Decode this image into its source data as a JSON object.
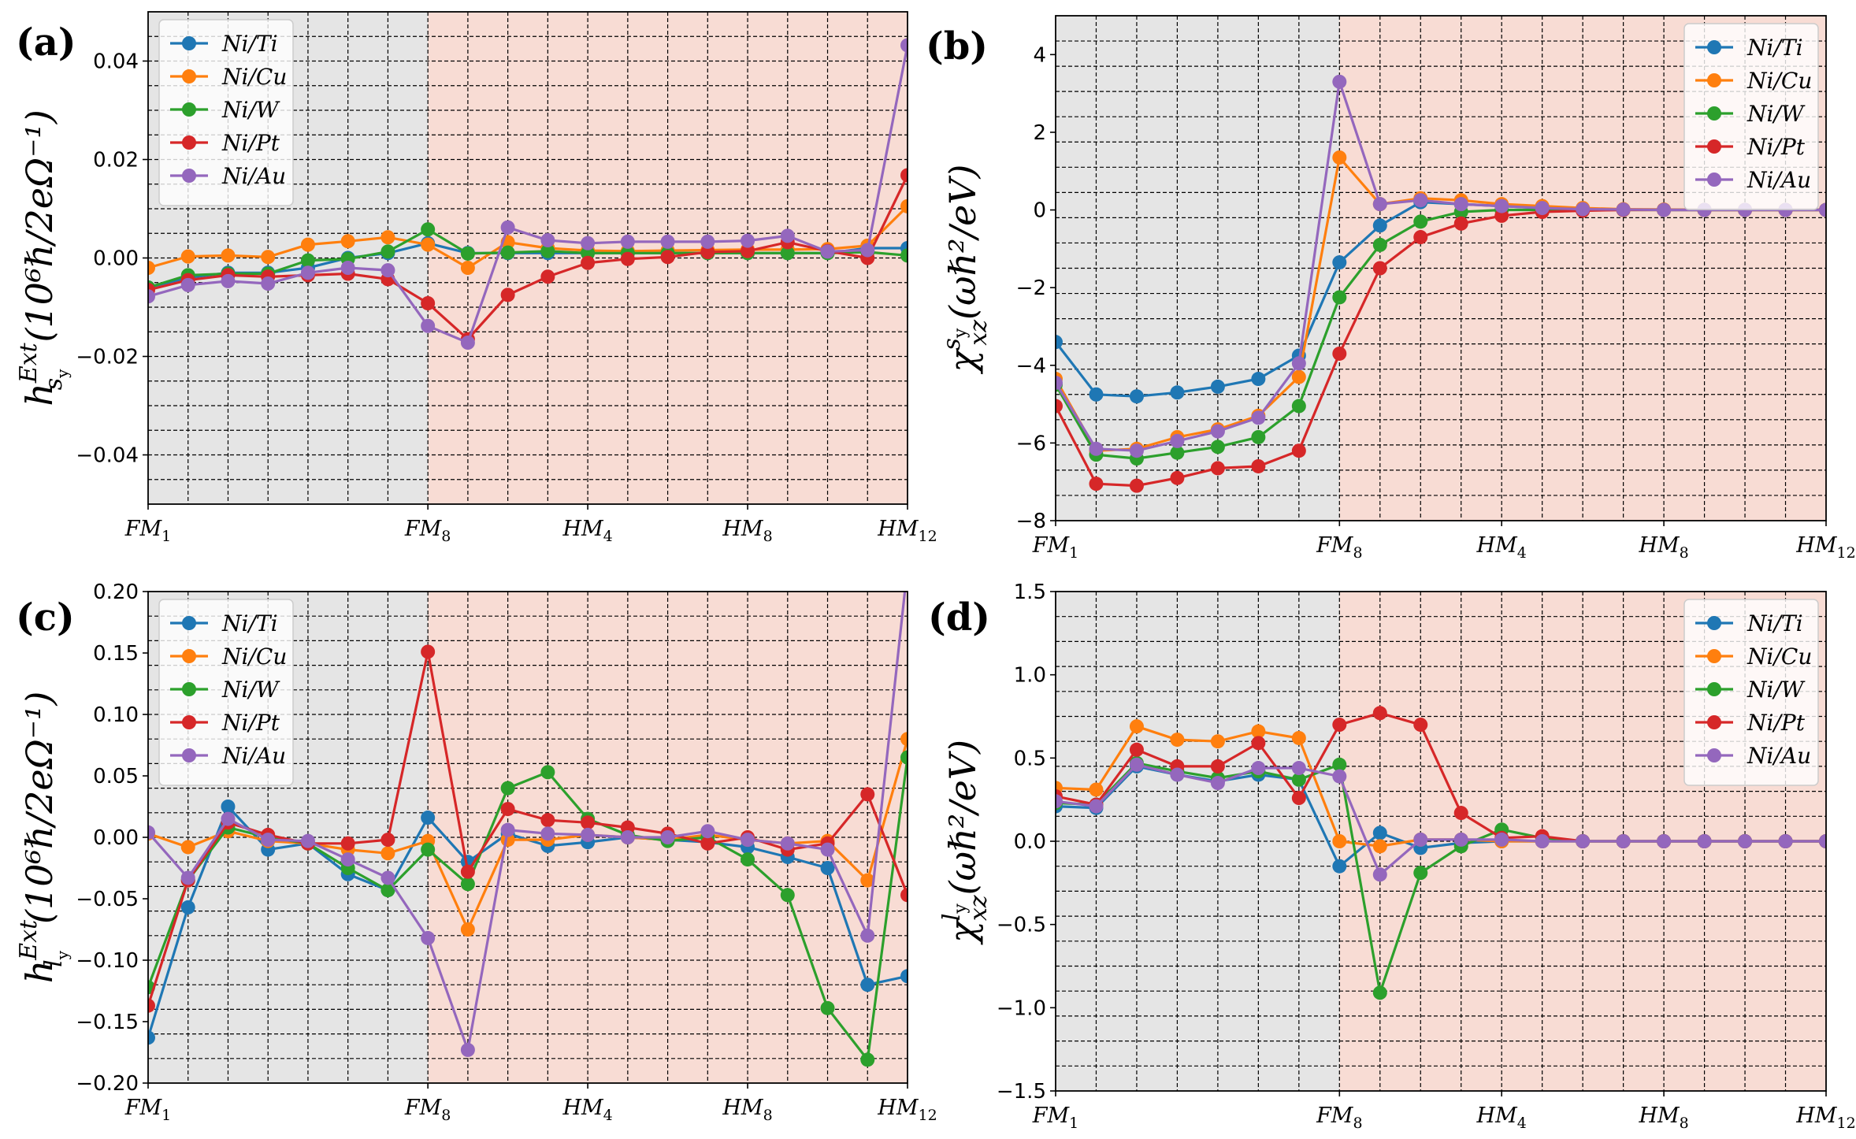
{
  "chart_data": [
    {
      "panel": "(a)",
      "type": "line",
      "ylabel_base": "h",
      "ylabel_sup": "Ext",
      "ylabel_sub": "s",
      "ylabel_subsub": "y",
      "ylabel_units": "(10⁶ℏ/2eΩ⁻¹)",
      "ylim": [
        -0.05,
        0.05
      ],
      "yticks": [
        -0.04,
        -0.02,
        0.0,
        0.02,
        0.04
      ],
      "ytick_labels": [
        "−0.04",
        "−0.02",
        "0.00",
        "0.02",
        "0.04"
      ],
      "x_count": 20,
      "xticks": [
        0,
        7,
        11,
        15,
        19
      ],
      "xtick_labels": [
        [
          "FM",
          "1"
        ],
        [
          "FM",
          "8"
        ],
        [
          "HM",
          "4"
        ],
        [
          "HM",
          "8"
        ],
        [
          "HM",
          "12"
        ]
      ],
      "shade_split": 7,
      "legend_loc": "upper-left",
      "series": [
        {
          "name": "Ni/Ti",
          "values": [
            -0.006,
            -0.004,
            -0.003,
            -0.003,
            -0.002,
            0.0,
            0.001,
            0.003,
            0.001,
            0.001,
            0.001,
            0.001,
            0.001,
            0.001,
            0.001,
            0.001,
            0.001,
            0.001,
            0.002,
            0.002
          ]
        },
        {
          "name": "Ni/Cu",
          "values": [
            -0.002,
            0.0003,
            0.0005,
            0.0002,
            0.0027,
            0.0034,
            0.0042,
            0.0027,
            -0.002,
            0.0032,
            0.002,
            0.0015,
            0.0014,
            0.0015,
            0.0016,
            0.0017,
            0.0017,
            0.0018,
            0.0025,
            0.0105
          ]
        },
        {
          "name": "Ni/W",
          "values": [
            -0.006,
            -0.0035,
            -0.0032,
            -0.0032,
            -0.0005,
            -0.0002,
            0.0013,
            0.0058,
            0.0009,
            0.0011,
            0.0014,
            0.001,
            0.001,
            0.001,
            0.001,
            0.001,
            0.001,
            0.001,
            0.0012,
            0.0005
          ]
        },
        {
          "name": "Ni/Pt",
          "values": [
            -0.0065,
            -0.0045,
            -0.0035,
            -0.0038,
            -0.0035,
            -0.0032,
            -0.0043,
            -0.0092,
            -0.0165,
            -0.0075,
            -0.0038,
            -0.001,
            -0.0002,
            0.0002,
            0.0012,
            0.0014,
            0.0032,
            0.0014,
            0.0,
            0.0168
          ]
        },
        {
          "name": "Ni/Au",
          "values": [
            -0.0078,
            -0.0055,
            -0.0047,
            -0.0052,
            -0.003,
            -0.002,
            -0.0025,
            -0.0138,
            -0.0172,
            0.0062,
            0.0036,
            0.003,
            0.0033,
            0.0033,
            0.0033,
            0.0035,
            0.0045,
            0.0013,
            0.0016,
            0.0432
          ]
        }
      ]
    },
    {
      "panel": "(b)",
      "type": "line",
      "ylabel_base": "χ",
      "ylabel_sup": "s",
      "ylabel_supsub": "y",
      "ylabel_sub": "xz",
      "ylabel_units": "(ωℏ²/eV)",
      "ylim": [
        -8,
        5
      ],
      "yticks": [
        -8,
        -6,
        -4,
        -2,
        0,
        2,
        4
      ],
      "ytick_labels": [
        "−8",
        "−6",
        "−4",
        "−2",
        "0",
        "2",
        "4"
      ],
      "x_count": 20,
      "xticks": [
        0,
        7,
        11,
        15,
        19
      ],
      "xtick_labels": [
        [
          "FM",
          "1"
        ],
        [
          "FM",
          "8"
        ],
        [
          "HM",
          "4"
        ],
        [
          "HM",
          "8"
        ],
        [
          "HM",
          "12"
        ]
      ],
      "shade_split": 7,
      "legend_loc": "upper-right",
      "series": [
        {
          "name": "Ni/Ti",
          "values": [
            -3.4,
            -4.75,
            -4.8,
            -4.7,
            -4.55,
            -4.35,
            -3.75,
            -1.35,
            -0.4,
            0.2,
            0.15,
            0.1,
            0.05,
            0.02,
            0.01,
            0.0,
            0.0,
            0.0,
            0.0,
            0.0
          ]
        },
        {
          "name": "Ni/Cu",
          "values": [
            -4.35,
            -6.2,
            -6.15,
            -5.85,
            -5.65,
            -5.3,
            -4.3,
            1.35,
            0.15,
            0.3,
            0.25,
            0.15,
            0.1,
            0.05,
            0.02,
            0.01,
            0.0,
            0.0,
            0.0,
            0.0
          ]
        },
        {
          "name": "Ni/W",
          "values": [
            -4.5,
            -6.3,
            -6.4,
            -6.25,
            -6.1,
            -5.85,
            -5.05,
            -2.25,
            -0.9,
            -0.3,
            -0.05,
            0.0,
            0.0,
            0.0,
            0.0,
            0.0,
            0.0,
            0.0,
            0.0,
            0.0
          ]
        },
        {
          "name": "Ni/Pt",
          "values": [
            -5.05,
            -7.05,
            -7.1,
            -6.9,
            -6.65,
            -6.6,
            -6.2,
            -3.7,
            -1.5,
            -0.7,
            -0.35,
            -0.15,
            -0.05,
            -0.02,
            0.0,
            0.0,
            0.0,
            0.0,
            0.0,
            0.0
          ]
        },
        {
          "name": "Ni/Au",
          "values": [
            -4.45,
            -6.15,
            -6.2,
            -5.95,
            -5.7,
            -5.35,
            -3.95,
            3.3,
            0.15,
            0.25,
            0.15,
            0.1,
            0.05,
            0.02,
            0.01,
            0.0,
            0.0,
            0.0,
            0.0,
            0.0
          ]
        }
      ]
    },
    {
      "panel": "(c)",
      "type": "line",
      "ylabel_base": "h",
      "ylabel_sup": "Ext",
      "ylabel_sub": "l",
      "ylabel_subsub": "y",
      "ylabel_units": "(10⁶ℏ/2eΩ⁻¹)",
      "ylim": [
        -0.2,
        0.2
      ],
      "yticks": [
        -0.2,
        -0.15,
        -0.1,
        -0.05,
        0.0,
        0.05,
        0.1,
        0.15,
        0.2
      ],
      "ytick_labels": [
        "−0.20",
        "−0.15",
        "−0.10",
        "−0.05",
        "0.00",
        "0.05",
        "0.10",
        "0.15",
        "0.20"
      ],
      "x_count": 20,
      "xticks": [
        0,
        7,
        11,
        15,
        19
      ],
      "xtick_labels": [
        [
          "FM",
          "1"
        ],
        [
          "FM",
          "8"
        ],
        [
          "HM",
          "4"
        ],
        [
          "HM",
          "8"
        ],
        [
          "HM",
          "12"
        ]
      ],
      "shade_split": 7,
      "legend_loc": "upper-left",
      "series": [
        {
          "name": "Ni/Ti",
          "values": [
            -0.163,
            -0.057,
            0.025,
            -0.01,
            -0.005,
            -0.03,
            -0.043,
            0.016,
            -0.02,
            0.003,
            -0.007,
            -0.004,
            0.0,
            -0.002,
            -0.004,
            -0.008,
            -0.016,
            -0.025,
            -0.12,
            -0.113
          ]
        },
        {
          "name": "Ni/Cu",
          "values": [
            0.003,
            -0.008,
            0.005,
            -0.003,
            -0.005,
            -0.01,
            -0.013,
            -0.003,
            -0.075,
            -0.002,
            -0.002,
            0.002,
            0.0,
            -0.002,
            0.002,
            -0.002,
            -0.005,
            -0.003,
            -0.035,
            0.08
          ]
        },
        {
          "name": "Ni/W",
          "values": [
            -0.122,
            -0.035,
            0.008,
            0.0,
            -0.005,
            -0.025,
            -0.043,
            -0.01,
            -0.038,
            0.04,
            0.053,
            0.015,
            0.002,
            -0.003,
            0.0,
            -0.018,
            -0.047,
            -0.139,
            -0.181,
            0.065
          ]
        },
        {
          "name": "Ni/Pt",
          "values": [
            -0.137,
            -0.035,
            0.012,
            0.002,
            -0.005,
            -0.005,
            -0.002,
            0.151,
            -0.028,
            0.023,
            0.014,
            0.012,
            0.008,
            0.003,
            -0.005,
            0.0,
            -0.01,
            -0.005,
            0.035,
            -0.047
          ]
        },
        {
          "name": "Ni/Au",
          "values": [
            0.004,
            -0.033,
            0.015,
            -0.002,
            -0.003,
            -0.018,
            -0.033,
            -0.082,
            -0.173,
            0.006,
            0.003,
            0.002,
            0.0,
            0.0,
            0.005,
            -0.002,
            -0.005,
            -0.01,
            -0.08,
            0.22
          ]
        }
      ]
    },
    {
      "panel": "(d)",
      "type": "line",
      "ylabel_base": "χ",
      "ylabel_sup": "l",
      "ylabel_supsub": "y",
      "ylabel_sub": "xz",
      "ylabel_units": "(ωℏ²/eV)",
      "ylim": [
        -1.5,
        1.5
      ],
      "yticks": [
        -1.5,
        -1.0,
        -0.5,
        0.0,
        0.5,
        1.0,
        1.5
      ],
      "ytick_labels": [
        "−1.5",
        "−1.0",
        "−0.5",
        "0.0",
        "0.5",
        "1.0",
        "1.5"
      ],
      "x_count": 20,
      "xticks": [
        0,
        7,
        11,
        15,
        19
      ],
      "xtick_labels": [
        [
          "FM",
          "1"
        ],
        [
          "FM",
          "8"
        ],
        [
          "HM",
          "4"
        ],
        [
          "HM",
          "8"
        ],
        [
          "HM",
          "12"
        ]
      ],
      "shade_split": 7,
      "legend_loc": "upper-right",
      "series": [
        {
          "name": "Ni/Ti",
          "values": [
            0.21,
            0.2,
            0.45,
            0.4,
            0.36,
            0.4,
            0.37,
            -0.15,
            0.05,
            -0.04,
            -0.01,
            0.0,
            0.0,
            0.0,
            0.0,
            0.0,
            0.0,
            0.0,
            0.0,
            0.0
          ]
        },
        {
          "name": "Ni/Cu",
          "values": [
            0.32,
            0.31,
            0.69,
            0.61,
            0.6,
            0.66,
            0.62,
            0.0,
            -0.03,
            0.01,
            0.01,
            0.0,
            0.0,
            0.0,
            0.0,
            0.0,
            0.0,
            0.0,
            0.0,
            0.0
          ]
        },
        {
          "name": "Ni/W",
          "values": [
            0.23,
            0.22,
            0.47,
            0.42,
            0.38,
            0.42,
            0.37,
            0.46,
            -0.91,
            -0.19,
            -0.03,
            0.07,
            0.02,
            0.0,
            0.0,
            0.0,
            0.0,
            0.0,
            0.0,
            0.0
          ]
        },
        {
          "name": "Ni/Pt",
          "values": [
            0.27,
            0.22,
            0.55,
            0.45,
            0.45,
            0.59,
            0.26,
            0.7,
            0.77,
            0.7,
            0.17,
            0.02,
            0.03,
            0.0,
            0.0,
            0.0,
            0.0,
            0.0,
            0.0,
            0.0
          ]
        },
        {
          "name": "Ni/Au",
          "values": [
            0.24,
            0.21,
            0.46,
            0.4,
            0.35,
            0.44,
            0.44,
            0.39,
            -0.2,
            0.01,
            0.01,
            0.01,
            0.0,
            0.0,
            0.0,
            0.0,
            0.0,
            0.0,
            0.0,
            0.0
          ]
        }
      ]
    }
  ],
  "colors": {
    "Ni/Ti": "#1f77b4",
    "Ni/Cu": "#ff7f0e",
    "Ni/W": "#2ca02c",
    "Ni/Pt": "#d62728",
    "Ni/Au": "#9467bd",
    "shade_left": "#e5e5e5",
    "shade_right": "#f8dcd4"
  }
}
